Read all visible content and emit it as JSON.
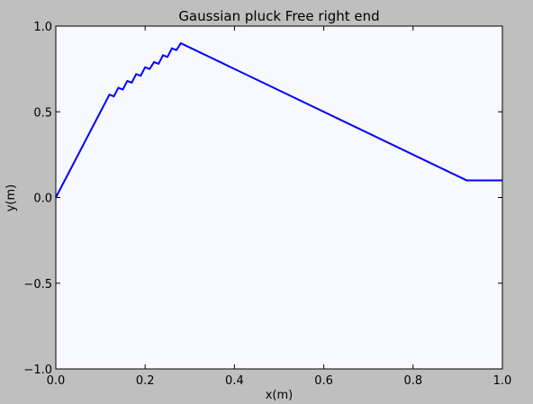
{
  "chart_data": {
    "type": "line",
    "title": "Gaussian pluck Free right end",
    "xlabel": "x(m)",
    "ylabel": "y(m)",
    "xlim": [
      0.0,
      1.0
    ],
    "ylim": [
      -1.0,
      1.0
    ],
    "grid": false,
    "xticks": [
      0.0,
      0.2,
      0.4,
      0.6,
      0.8,
      1.0
    ],
    "xtick_labels": [
      "0.0",
      "0.2",
      "0.4",
      "0.6",
      "0.8",
      "1.0"
    ],
    "yticks": [
      -1.0,
      -0.5,
      0.0,
      0.5,
      1.0
    ],
    "ytick_labels": [
      "−1.0",
      "−0.5",
      "0.0",
      "0.5",
      "1.0"
    ],
    "series": [
      {
        "color": "#0000ff",
        "x": [
          0.0,
          0.12,
          0.13,
          0.14,
          0.15,
          0.16,
          0.17,
          0.18,
          0.19,
          0.2,
          0.21,
          0.22,
          0.23,
          0.24,
          0.25,
          0.26,
          0.27,
          0.28,
          0.92,
          1.0
        ],
        "y": [
          0.0,
          0.6,
          0.59,
          0.64,
          0.63,
          0.68,
          0.67,
          0.72,
          0.71,
          0.76,
          0.75,
          0.79,
          0.78,
          0.83,
          0.82,
          0.87,
          0.86,
          0.9,
          0.1,
          0.1
        ]
      }
    ]
  },
  "colors": {
    "figure_bg": "#bfbfbf",
    "plot_bg": "#f8f8ff",
    "line": "#0000ff"
  }
}
